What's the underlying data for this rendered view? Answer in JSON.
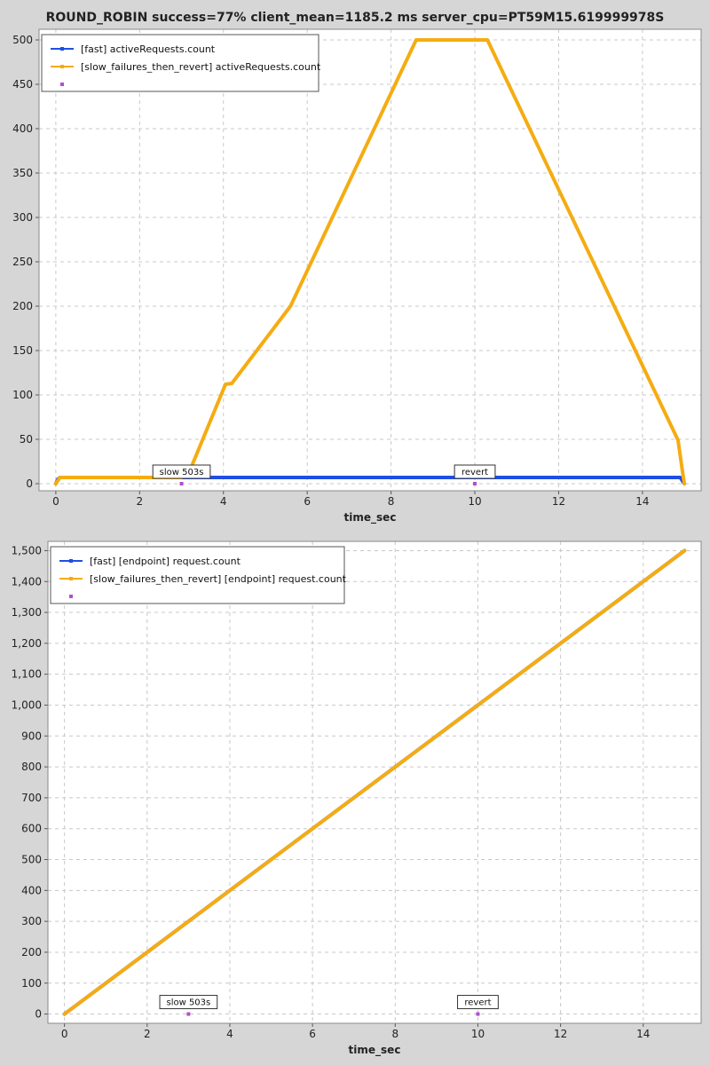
{
  "title": "ROUND_ROBIN success=77% client_mean=1185.2 ms server_cpu=PT59M15.619999978S",
  "colors": {
    "fast": "#1f4fe0",
    "slow": "#f5ac12",
    "marker": "#b04fd0"
  },
  "chart_data": [
    {
      "type": "line",
      "xlabel": "time_sec",
      "ylabel": "",
      "xlim": [
        -0.4,
        15.4
      ],
      "ylim": [
        -8,
        512
      ],
      "xticks": [
        0,
        2,
        4,
        6,
        8,
        10,
        12,
        14
      ],
      "yticks": [
        0,
        50,
        100,
        150,
        200,
        250,
        300,
        350,
        400,
        450,
        500
      ],
      "ytick_labels": [
        "0",
        "50",
        "100",
        "150",
        "200",
        "250",
        "300",
        "350",
        "400",
        "450",
        "500"
      ],
      "grid": true,
      "legend_position": "top-left",
      "series": [
        {
          "name": "[fast] activeRequests.count",
          "color_key": "fast",
          "x": [
            0,
            0.05,
            0.1,
            14.9,
            15.0
          ],
          "y": [
            0,
            5,
            7,
            7,
            0
          ]
        },
        {
          "name": "[slow_failures_then_revert] activeRequests.count",
          "color_key": "slow",
          "x": [
            0,
            0.1,
            3.0,
            3.2,
            4.05,
            4.2,
            5.6,
            8.6,
            10.3,
            14.85,
            14.95,
            15.0
          ],
          "y": [
            0,
            7,
            7,
            15,
            112,
            113,
            200,
            500,
            500,
            49,
            15,
            0
          ]
        },
        {
          "name": "",
          "color_key": "marker",
          "x": [],
          "y": []
        }
      ],
      "annotations": [
        {
          "text": "slow 503s",
          "x": 3.0,
          "y": 0
        },
        {
          "text": "revert",
          "x": 10.0,
          "y": 0
        }
      ]
    },
    {
      "type": "line",
      "xlabel": "time_sec",
      "ylabel": "",
      "xlim": [
        -0.4,
        15.4
      ],
      "ylim": [
        -30,
        1530
      ],
      "xticks": [
        0,
        2,
        4,
        6,
        8,
        10,
        12,
        14
      ],
      "yticks": [
        0,
        100,
        200,
        300,
        400,
        500,
        600,
        700,
        800,
        900,
        1000,
        1100,
        1200,
        1300,
        1400,
        1500
      ],
      "ytick_labels": [
        "0",
        "100",
        "200",
        "300",
        "400",
        "500",
        "600",
        "700",
        "800",
        "900",
        "1,000",
        "1,100",
        "1,200",
        "1,300",
        "1,400",
        "1,500"
      ],
      "grid": true,
      "legend_position": "top-left",
      "series": [
        {
          "name": "[fast] [endpoint] request.count",
          "color_key": "fast",
          "x": [
            0,
            15.0
          ],
          "y": [
            0,
            1500
          ]
        },
        {
          "name": "[slow_failures_then_revert] [endpoint] request.count",
          "color_key": "slow",
          "x": [
            0,
            15.0
          ],
          "y": [
            0,
            1500
          ]
        },
        {
          "name": "",
          "color_key": "marker",
          "x": [],
          "y": []
        }
      ],
      "annotations": [
        {
          "text": "slow 503s",
          "x": 3.0,
          "y": 0
        },
        {
          "text": "revert",
          "x": 10.0,
          "y": 0
        }
      ]
    }
  ]
}
